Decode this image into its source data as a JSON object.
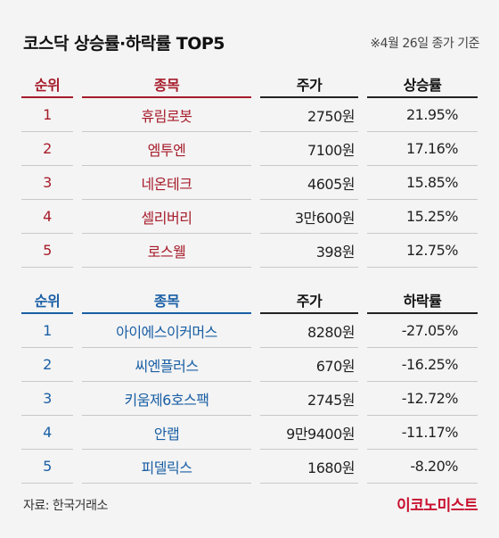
{
  "title": "코스닥 상승률·하락률 TOP5",
  "note": "※4월 26일 종가 기준",
  "gainers": {
    "headers": [
      "순위",
      "종목",
      "주가",
      "상승률"
    ],
    "rows": [
      {
        "rank": "1",
        "name": "휴림로봇",
        "price": "2750원",
        "change": "21.95%"
      },
      {
        "rank": "2",
        "name": "엠투엔",
        "price": "7100원",
        "change": "17.16%"
      },
      {
        "rank": "3",
        "name": "네온테크",
        "price": "4605원",
        "change": "15.85%"
      },
      {
        "rank": "4",
        "name": "셀리버리",
        "price": "3만600원",
        "change": "15.25%"
      },
      {
        "rank": "5",
        "name": "로스웰",
        "price": "398원",
        "change": "12.75%"
      }
    ]
  },
  "losers": {
    "headers": [
      "순위",
      "종목",
      "주가",
      "하락률"
    ],
    "rows": [
      {
        "rank": "1",
        "name": "아이에스이커머스",
        "price": "8280원",
        "change": "-27.05%"
      },
      {
        "rank": "2",
        "name": "씨엔플러스",
        "price": "670원",
        "change": "-16.25%"
      },
      {
        "rank": "3",
        "name": "키움제6호스팩",
        "price": "2745원",
        "change": "-12.72%"
      },
      {
        "rank": "4",
        "name": "안랩",
        "price": "9만9400원",
        "change": "-11.17%"
      },
      {
        "rank": "5",
        "name": "피델릭스",
        "price": "1680원",
        "change": "-8.20%"
      }
    ]
  },
  "source": "자료: 한국거래소",
  "brand": "이코노미스트",
  "colors": {
    "gain": "#a61c2b",
    "loss": "#1a5fa5",
    "brand": "#c8102e"
  }
}
